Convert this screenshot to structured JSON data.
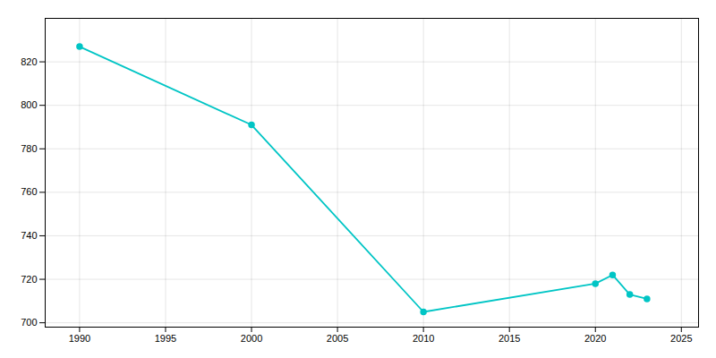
{
  "chart_data": {
    "type": "line",
    "x": [
      1990,
      2000,
      2010,
      2020,
      2021,
      2022,
      2023
    ],
    "values": [
      827,
      791,
      705,
      718,
      722,
      713,
      711
    ],
    "color": "#00c5c5",
    "marker": "circle",
    "xlim": [
      1988,
      2026
    ],
    "ylim": [
      698,
      840
    ],
    "xticks": [
      1990,
      1995,
      2000,
      2005,
      2010,
      2015,
      2020,
      2025
    ],
    "yticks": [
      700,
      720,
      740,
      760,
      780,
      800,
      820
    ],
    "grid": true
  }
}
